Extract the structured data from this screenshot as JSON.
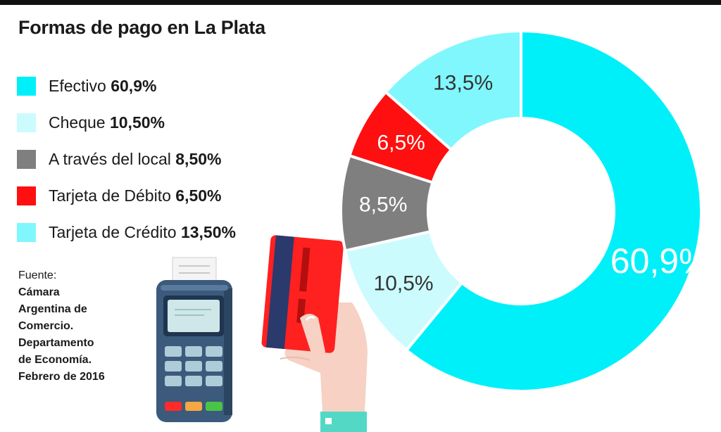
{
  "title": "Formas de pago en La Plata",
  "legend": [
    {
      "label": "Efectivo",
      "value": "60,9%",
      "color": "#00f0fa"
    },
    {
      "label": "Cheque",
      "value": "10,50%",
      "color": "#ccfbfe"
    },
    {
      "label": "A través del local",
      "value": "8,50%",
      "color": "#7f7f7f"
    },
    {
      "label": "Tarjeta de Débito",
      "value": "6,50%",
      "color": "#ff0f0f"
    },
    {
      "label": "Tarjeta de Crédito",
      "value": "13,50%",
      "color": "#80f7fd"
    }
  ],
  "source": {
    "label": "Fuente:",
    "lines": [
      "Cámara",
      "Argentina de",
      "Comercio.",
      "Departamento",
      "de Economía.",
      "Febrero de 2016"
    ]
  },
  "chart_data": {
    "type": "pie",
    "title": "Formas de pago en La Plata",
    "categories": [
      "Efectivo",
      "Cheque",
      "A través del local",
      "Tarjeta de Débito",
      "Tarjeta de Crédito"
    ],
    "values": [
      60.9,
      10.5,
      8.5,
      6.5,
      13.5
    ],
    "value_labels": [
      "60,9%",
      "10,5%",
      "8,5%",
      "6,5%",
      "13,5%"
    ],
    "colors": [
      "#00f0fa",
      "#ccfbfe",
      "#7f7f7f",
      "#ff0f0f",
      "#80f7fd"
    ],
    "label_colors": [
      "#ffffff",
      "#333333",
      "#ffffff",
      "#ffffff",
      "#333333"
    ],
    "donut": true,
    "legend_position": "left"
  }
}
